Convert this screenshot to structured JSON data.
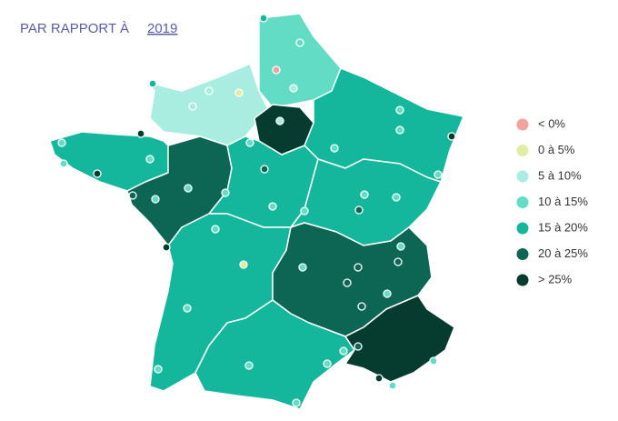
{
  "header": {
    "title": "PAR RAPPORT À",
    "year": "2019"
  },
  "legend": [
    {
      "label": "< 0%",
      "color": "#f4a29b"
    },
    {
      "label": "0 à 5%",
      "color": "#e1eda2"
    },
    {
      "label": "5 à 10%",
      "color": "#a9ede0"
    },
    {
      "label": "10 à 15%",
      "color": "#62dcc4"
    },
    {
      "label": "15 à 20%",
      "color": "#14b79b"
    },
    {
      "label": "20 à 25%",
      "color": "#0c6653"
    },
    {
      "label": "> 25%",
      "color": "#063b2f"
    }
  ]
}
